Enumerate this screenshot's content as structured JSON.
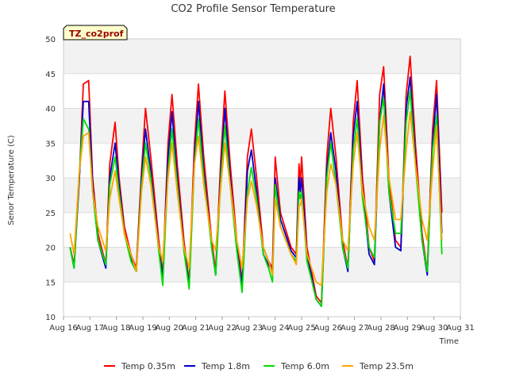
{
  "chart_data": {
    "type": "line",
    "title": "CO2 Profile Sensor Temperature",
    "xlabel": "Time",
    "ylabel": "Senor Temperature (C)",
    "annotation": "TZ_co2prof",
    "xlim": [
      16,
      31
    ],
    "ylim": [
      10,
      50
    ],
    "y_ticks": [
      10,
      15,
      20,
      25,
      30,
      35,
      40,
      45,
      50
    ],
    "x_ticks": [
      {
        "value": 16,
        "label": "Aug 16"
      },
      {
        "value": 17,
        "label": "Aug 17"
      },
      {
        "value": 18,
        "label": "Aug 18"
      },
      {
        "value": 19,
        "label": "Aug 19"
      },
      {
        "value": 20,
        "label": "Aug 20"
      },
      {
        "value": 21,
        "label": "Aug 21"
      },
      {
        "value": 22,
        "label": "Aug 22"
      },
      {
        "value": 23,
        "label": "Aug 23"
      },
      {
        "value": 24,
        "label": "Aug 24"
      },
      {
        "value": 25,
        "label": "Aug 25"
      },
      {
        "value": 26,
        "label": "Aug 26"
      },
      {
        "value": 27,
        "label": "Aug 27"
      },
      {
        "value": 28,
        "label": "Aug 28"
      },
      {
        "value": 29,
        "label": "Aug 29"
      },
      {
        "value": 30,
        "label": "Aug 30"
      },
      {
        "value": 31,
        "label": "Aug 31"
      }
    ],
    "grid": true,
    "legend_position": "bottom",
    "series": [
      {
        "name": "Temp 0.35m",
        "color": "#ff0000",
        "x": [
          16.25,
          16.4,
          16.6,
          16.75,
          16.95,
          17.1,
          17.3,
          17.6,
          17.75,
          17.95,
          18.1,
          18.3,
          18.55,
          18.75,
          18.95,
          19.1,
          19.3,
          19.6,
          19.75,
          19.95,
          20.1,
          20.3,
          20.55,
          20.75,
          20.95,
          21.1,
          21.3,
          21.6,
          21.75,
          21.95,
          22.1,
          22.3,
          22.55,
          22.75,
          22.95,
          23.1,
          23.3,
          23.55,
          23.75,
          23.9,
          24.0,
          24.2,
          24.6,
          24.8,
          24.9,
          24.95,
          25.0,
          25.2,
          25.55,
          25.75,
          25.95,
          26.1,
          26.3,
          26.55,
          26.75,
          26.95,
          27.1,
          27.3,
          27.55,
          27.75,
          27.95,
          28.1,
          28.3,
          28.55,
          28.75,
          28.95,
          29.1,
          29.3,
          29.55,
          29.75,
          29.95,
          30.1,
          30.3
        ],
        "y": [
          20,
          17.5,
          30,
          43.5,
          44,
          30,
          22,
          17.5,
          32,
          38,
          30,
          23,
          19,
          17,
          31,
          40,
          33,
          21,
          16,
          35,
          42,
          32,
          21,
          15,
          35,
          43.5,
          33,
          21,
          16.5,
          33,
          42.5,
          32,
          21,
          15,
          33,
          37,
          30,
          20,
          18,
          17,
          33,
          25,
          20,
          19,
          32,
          29,
          33,
          20,
          13,
          12,
          33,
          40,
          33,
          21,
          17,
          38,
          44,
          30,
          20,
          18,
          42,
          46,
          30,
          21,
          20,
          42,
          47.5,
          35,
          22,
          16.5,
          37,
          44,
          25
        ]
      },
      {
        "name": "Temp 1.8m",
        "color": "#0000cc",
        "x": [
          16.25,
          16.4,
          16.6,
          16.75,
          16.95,
          17.1,
          17.3,
          17.6,
          17.75,
          17.95,
          18.1,
          18.3,
          18.55,
          18.75,
          18.95,
          19.1,
          19.3,
          19.6,
          19.75,
          19.95,
          20.1,
          20.3,
          20.55,
          20.75,
          20.95,
          21.1,
          21.3,
          21.6,
          21.75,
          21.95,
          22.1,
          22.3,
          22.55,
          22.75,
          22.95,
          23.1,
          23.3,
          23.55,
          23.75,
          23.9,
          24.0,
          24.2,
          24.6,
          24.8,
          24.9,
          24.95,
          25.0,
          25.2,
          25.55,
          25.75,
          25.95,
          26.1,
          26.3,
          26.55,
          26.75,
          26.95,
          27.1,
          27.3,
          27.55,
          27.75,
          27.95,
          28.1,
          28.3,
          28.55,
          28.75,
          28.95,
          29.1,
          29.3,
          29.55,
          29.75,
          29.95,
          30.1,
          30.3
        ],
        "y": [
          20,
          17,
          30,
          41,
          41,
          29,
          21,
          17,
          30,
          35,
          29,
          22,
          18.5,
          16.5,
          30,
          37,
          31,
          20,
          15.5,
          33,
          39.5,
          30,
          20,
          14.5,
          33,
          41,
          31,
          20,
          16,
          31,
          40,
          30,
          20,
          14.5,
          31,
          34,
          28,
          19,
          17.5,
          16.5,
          30,
          24,
          19.5,
          18.5,
          30,
          28,
          30,
          19,
          12.5,
          11.5,
          31,
          36.5,
          31,
          20,
          16.5,
          36,
          41,
          28,
          19,
          17.5,
          38,
          43.5,
          28,
          20,
          19.5,
          40,
          44.5,
          33,
          21,
          16,
          35,
          42,
          22
        ]
      },
      {
        "name": "Temp 6.0m",
        "color": "#00dd00",
        "x": [
          16.25,
          16.4,
          16.6,
          16.75,
          16.95,
          17.1,
          17.3,
          17.6,
          17.75,
          17.95,
          18.1,
          18.3,
          18.55,
          18.75,
          18.95,
          19.1,
          19.3,
          19.6,
          19.75,
          19.95,
          20.1,
          20.3,
          20.55,
          20.75,
          20.95,
          21.1,
          21.3,
          21.6,
          21.75,
          21.95,
          22.1,
          22.3,
          22.55,
          22.75,
          22.95,
          23.1,
          23.3,
          23.55,
          23.75,
          23.9,
          24.0,
          24.2,
          24.6,
          24.8,
          24.9,
          24.95,
          25.0,
          25.2,
          25.55,
          25.75,
          25.95,
          26.1,
          26.3,
          26.55,
          26.75,
          26.95,
          27.1,
          27.3,
          27.55,
          27.75,
          27.95,
          28.1,
          28.3,
          28.55,
          28.75,
          28.95,
          29.1,
          29.3,
          29.55,
          29.75,
          29.95,
          30.1,
          30.3
        ],
        "y": [
          20,
          17,
          31,
          38.5,
          37,
          28,
          21,
          17.5,
          29,
          33,
          28,
          22,
          18,
          16.5,
          29,
          35,
          30,
          19.5,
          14.5,
          31,
          37,
          29,
          19.5,
          14,
          32,
          38.5,
          30,
          20,
          16,
          30,
          37.5,
          29,
          19.5,
          13.5,
          28,
          31.5,
          27,
          19,
          17,
          15,
          29,
          23,
          19,
          18,
          28,
          27,
          28,
          18,
          12.5,
          11.5,
          30,
          35,
          29,
          20,
          17,
          34,
          38.5,
          27,
          20,
          18.5,
          38,
          41.5,
          28,
          22,
          22,
          38,
          42.5,
          32,
          21,
          16.5,
          34,
          39,
          19
        ]
      },
      {
        "name": "Temp 23.5m",
        "color": "#ffa500",
        "x": [
          16.25,
          16.4,
          16.6,
          16.75,
          16.95,
          17.1,
          17.3,
          17.6,
          17.75,
          17.95,
          18.1,
          18.3,
          18.55,
          18.75,
          18.95,
          19.1,
          19.3,
          19.6,
          19.75,
          19.95,
          20.1,
          20.3,
          20.55,
          20.75,
          20.95,
          21.1,
          21.3,
          21.6,
          21.75,
          21.95,
          22.1,
          22.3,
          22.55,
          22.75,
          22.95,
          23.1,
          23.3,
          23.55,
          23.75,
          23.9,
          24.0,
          24.2,
          24.6,
          24.8,
          24.9,
          24.95,
          25.0,
          25.2,
          25.55,
          25.75,
          25.95,
          26.1,
          26.3,
          26.55,
          26.75,
          26.95,
          27.1,
          27.3,
          27.55,
          27.75,
          27.95,
          28.1,
          28.3,
          28.55,
          28.75,
          28.95,
          29.1,
          29.3,
          29.55,
          29.75,
          29.95,
          30.1,
          30.3
        ],
        "y": [
          22,
          19,
          31,
          36,
          36.5,
          28,
          23,
          19.5,
          27,
          31,
          27,
          22,
          19,
          16.5,
          28,
          33,
          29,
          20,
          18,
          30,
          35,
          28,
          20,
          17,
          32,
          36,
          29,
          21,
          19.5,
          29,
          35,
          29,
          21,
          17,
          27,
          29.5,
          26,
          20,
          18,
          16,
          27,
          23,
          19,
          17.5,
          26,
          26,
          27,
          19,
          15,
          14.5,
          28,
          32,
          29,
          21,
          19.5,
          32,
          36.5,
          28,
          23,
          21,
          34,
          39,
          30,
          24,
          24,
          34,
          39.5,
          32,
          24,
          21,
          31,
          37.5,
          21
        ]
      }
    ]
  }
}
